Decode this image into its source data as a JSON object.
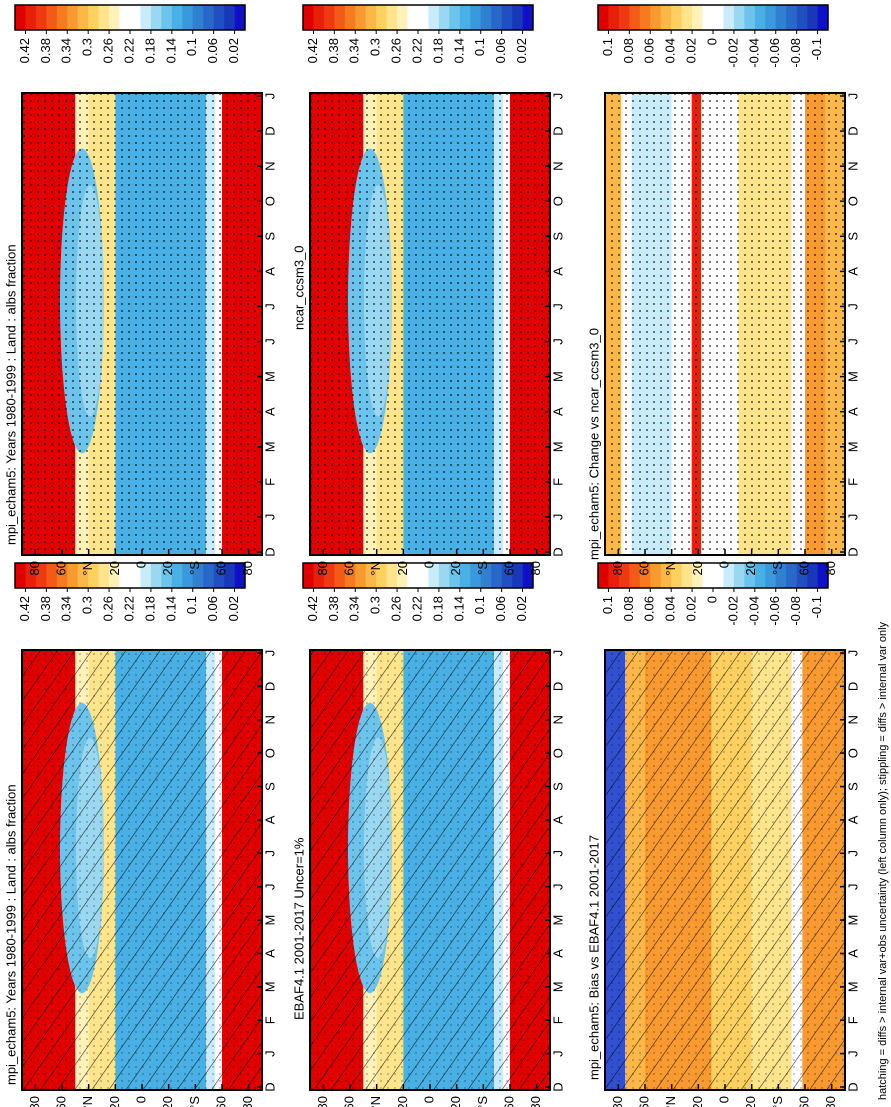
{
  "chart_data": [
    {
      "type": "heatmap",
      "title": "mpi_echam5: Years 1980-1999 : Land : albs fraction",
      "style": "mean",
      "hatching": true,
      "stippling": true,
      "categories": [
        "D",
        "J",
        "F",
        "M",
        "A",
        "M",
        "J",
        "J",
        "A",
        "S",
        "O",
        "N",
        "D",
        "J"
      ],
      "ylim": [
        -90,
        90
      ],
      "yticks": [
        80,
        60,
        {
          "value": 40,
          "label": "°N"
        },
        20,
        0,
        {
          "value": -20,
          "label": "20"
        },
        {
          "value": -40,
          "label": "°S"
        },
        {
          "value": -60,
          "label": "60"
        },
        {
          "value": -80,
          "label": "80"
        }
      ],
      "colorbar": {
        "colors": [
          "#e00000",
          "#e8200a",
          "#ee3a10",
          "#f25a18",
          "#f67a20",
          "#f99a30",
          "#fbb848",
          "#fdd060",
          "#fee48a",
          "#fff2b8",
          "#ffffff",
          "#ffffff",
          "#c8ecfa",
          "#9ad8f2",
          "#6cc4ec",
          "#48b0e4",
          "#3a98dc",
          "#3080d0",
          "#2868c8",
          "#2050c0",
          "#1838b8",
          "#1010c8"
        ],
        "ticks": [
          0.42,
          0.38,
          0.34,
          0.3,
          0.26,
          0.22,
          0.18,
          0.14,
          0.1,
          0.06,
          0.02
        ]
      }
    },
    {
      "type": "heatmap",
      "title": "mpi_echam5: Years 1980-1999 : Land : albs fraction",
      "style": "mean",
      "hatching": false,
      "stippling": true,
      "categories": [
        "D",
        "J",
        "F",
        "M",
        "A",
        "M",
        "J",
        "J",
        "A",
        "S",
        "O",
        "N",
        "D",
        "J"
      ],
      "ylim": [
        -90,
        90
      ],
      "yticks": [
        80,
        60,
        {
          "value": 40,
          "label": "°N"
        },
        20,
        0,
        {
          "value": -20,
          "label": "20"
        },
        {
          "value": -40,
          "label": "°S"
        },
        {
          "value": -60,
          "label": "60"
        },
        {
          "value": -80,
          "label": "80"
        }
      ],
      "colorbar": {
        "colors": [
          "#e00000",
          "#e8200a",
          "#ee3a10",
          "#f25a18",
          "#f67a20",
          "#f99a30",
          "#fbb848",
          "#fdd060",
          "#fee48a",
          "#fff2b8",
          "#ffffff",
          "#ffffff",
          "#c8ecfa",
          "#9ad8f2",
          "#6cc4ec",
          "#48b0e4",
          "#3a98dc",
          "#3080d0",
          "#2868c8",
          "#2050c0",
          "#1838b8",
          "#1010c8"
        ],
        "ticks": [
          0.42,
          0.38,
          0.34,
          0.3,
          0.26,
          0.22,
          0.18,
          0.14,
          0.1,
          0.06,
          0.02
        ]
      }
    },
    {
      "type": "heatmap",
      "title": "EBAF4.1 2001-2017 Uncer=1%",
      "style": "mean",
      "hatching": true,
      "stippling": true,
      "categories": [
        "D",
        "J",
        "F",
        "M",
        "A",
        "M",
        "J",
        "J",
        "A",
        "S",
        "O",
        "N",
        "D",
        "J"
      ],
      "ylim": [
        -90,
        90
      ],
      "yticks": [
        80,
        60,
        {
          "value": 40,
          "label": "°N"
        },
        20,
        0,
        {
          "value": -20,
          "label": "20"
        },
        {
          "value": -40,
          "label": "°S"
        },
        {
          "value": -60,
          "label": "60"
        },
        {
          "value": -80,
          "label": "80"
        }
      ],
      "colorbar": {
        "colors": [
          "#e00000",
          "#e8200a",
          "#ee3a10",
          "#f25a18",
          "#f67a20",
          "#f99a30",
          "#fbb848",
          "#fdd060",
          "#fee48a",
          "#fff2b8",
          "#ffffff",
          "#ffffff",
          "#c8ecfa",
          "#9ad8f2",
          "#6cc4ec",
          "#48b0e4",
          "#3a98dc",
          "#3080d0",
          "#2868c8",
          "#2050c0",
          "#1838b8",
          "#1010c8"
        ],
        "ticks": [
          0.42,
          0.38,
          0.34,
          0.3,
          0.26,
          0.22,
          0.18,
          0.14,
          0.1,
          0.06,
          0.02
        ]
      }
    },
    {
      "type": "heatmap",
      "title": "ncar_ccsm3_0",
      "style": "mean",
      "hatching": false,
      "stippling": true,
      "categories": [
        "D",
        "J",
        "F",
        "M",
        "A",
        "M",
        "J",
        "J",
        "A",
        "S",
        "O",
        "N",
        "D",
        "J"
      ],
      "ylim": [
        -90,
        90
      ],
      "yticks": [
        80,
        60,
        {
          "value": 40,
          "label": "°N"
        },
        20,
        0,
        {
          "value": -20,
          "label": "20"
        },
        {
          "value": -40,
          "label": "°S"
        },
        {
          "value": -60,
          "label": "60"
        },
        {
          "value": -80,
          "label": "80"
        }
      ],
      "colorbar": {
        "colors": [
          "#e00000",
          "#e8200a",
          "#ee3a10",
          "#f25a18",
          "#f67a20",
          "#f99a30",
          "#fbb848",
          "#fdd060",
          "#fee48a",
          "#fff2b8",
          "#ffffff",
          "#ffffff",
          "#c8ecfa",
          "#9ad8f2",
          "#6cc4ec",
          "#48b0e4",
          "#3a98dc",
          "#3080d0",
          "#2868c8",
          "#2050c0",
          "#1838b8",
          "#1010c8"
        ],
        "ticks": [
          0.42,
          0.38,
          0.34,
          0.3,
          0.26,
          0.22,
          0.18,
          0.14,
          0.1,
          0.06,
          0.02
        ]
      }
    },
    {
      "type": "heatmap",
      "title": "mpi_echam5: Bias vs EBAF4.1 2001-2017",
      "style": "bias",
      "hatching": true,
      "stippling": true,
      "categories": [
        "D",
        "J",
        "F",
        "M",
        "A",
        "M",
        "J",
        "J",
        "A",
        "S",
        "O",
        "N",
        "D",
        "J"
      ],
      "ylim": [
        -90,
        90
      ],
      "yticks": [
        80,
        60,
        {
          "value": 40,
          "label": "°N"
        },
        20,
        0,
        {
          "value": -20,
          "label": "20"
        },
        {
          "value": -40,
          "label": "°S"
        },
        {
          "value": -60,
          "label": "60"
        },
        {
          "value": -80,
          "label": "80"
        }
      ],
      "colorbar": {
        "colors": [
          "#e00000",
          "#e8200a",
          "#ee3a10",
          "#f25a18",
          "#f67a20",
          "#f99a30",
          "#fbb848",
          "#fdd060",
          "#fee48a",
          "#fff2b8",
          "#ffffff",
          "#ffffff",
          "#c8ecfa",
          "#9ad8f2",
          "#6cc4ec",
          "#48b0e4",
          "#3a98dc",
          "#3080d0",
          "#2868c8",
          "#2050c0",
          "#1838b8",
          "#1010c8"
        ],
        "ticks": [
          0.1,
          0.08,
          0.06,
          0.04,
          0.02,
          0,
          -0.02,
          -0.04,
          -0.06,
          -0.08,
          -0.1
        ]
      }
    },
    {
      "type": "heatmap",
      "title": "mpi_echam5: Change vs ncar_ccsm3_0",
      "style": "change",
      "hatching": false,
      "stippling": true,
      "categories": [
        "D",
        "J",
        "F",
        "M",
        "A",
        "M",
        "J",
        "J",
        "A",
        "S",
        "O",
        "N",
        "D",
        "J"
      ],
      "ylim": [
        -90,
        90
      ],
      "yticks": [
        80,
        60,
        {
          "value": 40,
          "label": "°N"
        },
        20,
        0,
        {
          "value": -20,
          "label": "20"
        },
        {
          "value": -40,
          "label": "°S"
        },
        {
          "value": -60,
          "label": "60"
        },
        {
          "value": -80,
          "label": "80"
        }
      ],
      "colorbar": {
        "colors": [
          "#e00000",
          "#e8200a",
          "#ee3a10",
          "#f25a18",
          "#f67a20",
          "#f99a30",
          "#fbb848",
          "#fdd060",
          "#fee48a",
          "#fff2b8",
          "#ffffff",
          "#ffffff",
          "#c8ecfa",
          "#9ad8f2",
          "#6cc4ec",
          "#48b0e4",
          "#3a98dc",
          "#3080d0",
          "#2868c8",
          "#2050c0",
          "#1838b8",
          "#1010c8"
        ],
        "ticks": [
          0.1,
          0.08,
          0.06,
          0.04,
          0.02,
          0,
          -0.02,
          -0.04,
          -0.06,
          -0.08,
          -0.1
        ]
      }
    }
  ],
  "footnote": "hatching = diffs > internal var+obs uncertainty (left column only); stippling = diffs > internal var only"
}
